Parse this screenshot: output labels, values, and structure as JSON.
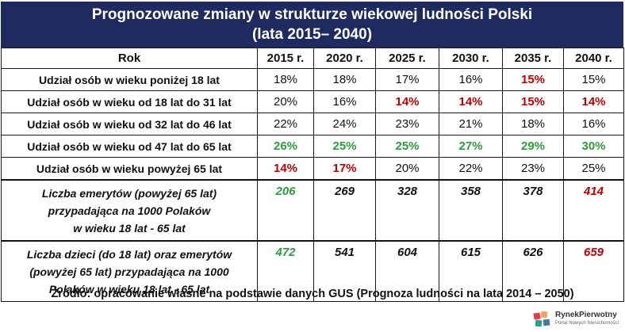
{
  "title_line1": "Prognozowane zmiany w strukturze wiekowej ludności Polski",
  "title_line2": "(lata 2015– 2040)",
  "table": {
    "header": [
      "Rok",
      "2015 r.",
      "2020 r.",
      "2025 r.",
      "2030 r.",
      "2035 r.",
      "2040 r."
    ],
    "rows": [
      {
        "label": "Udział osób w wieku poniżej 18 lat",
        "cells": [
          {
            "v": "18%",
            "c": ""
          },
          {
            "v": "18%",
            "c": ""
          },
          {
            "v": "17%",
            "c": ""
          },
          {
            "v": "16%",
            "c": ""
          },
          {
            "v": "15%",
            "c": "red"
          },
          {
            "v": "15%",
            "c": ""
          }
        ]
      },
      {
        "label": "Udział osób w wieku od 18 lat do 31 lat",
        "cells": [
          {
            "v": "20%",
            "c": ""
          },
          {
            "v": "16%",
            "c": ""
          },
          {
            "v": "14%",
            "c": "red"
          },
          {
            "v": "14%",
            "c": "red"
          },
          {
            "v": "15%",
            "c": "red"
          },
          {
            "v": "14%",
            "c": "red"
          }
        ]
      },
      {
        "label": "Udział osób w wieku od 32 lat do 46 lat",
        "cells": [
          {
            "v": "22%",
            "c": ""
          },
          {
            "v": "24%",
            "c": ""
          },
          {
            "v": "23%",
            "c": ""
          },
          {
            "v": "21%",
            "c": ""
          },
          {
            "v": "18%",
            "c": ""
          },
          {
            "v": "16%",
            "c": ""
          }
        ]
      },
      {
        "label": "Udział osób w wieku od 47 lat do 65 lat",
        "cells": [
          {
            "v": "26%",
            "c": "green"
          },
          {
            "v": "25%",
            "c": "green"
          },
          {
            "v": "25%",
            "c": "green"
          },
          {
            "v": "27%",
            "c": "green"
          },
          {
            "v": "29%",
            "c": "green"
          },
          {
            "v": "30%",
            "c": "green"
          }
        ]
      },
      {
        "label": "Udział osób w wieku powyżej 65 lat",
        "cells": [
          {
            "v": "14%",
            "c": "red"
          },
          {
            "v": "17%",
            "c": "red"
          },
          {
            "v": "20%",
            "c": ""
          },
          {
            "v": "22%",
            "c": ""
          },
          {
            "v": "23%",
            "c": ""
          },
          {
            "v": "25%",
            "c": ""
          }
        ]
      }
    ],
    "big_rows": [
      {
        "label_lines": [
          "Liczba emerytów (powyżej 65 lat)",
          "przypadająca na 1000 Polaków",
          "w wieku 18 lat - 65 lat"
        ],
        "cells": [
          {
            "v": "206",
            "c": "green"
          },
          {
            "v": "269",
            "c": ""
          },
          {
            "v": "328",
            "c": ""
          },
          {
            "v": "358",
            "c": ""
          },
          {
            "v": "378",
            "c": ""
          },
          {
            "v": "414",
            "c": "red"
          }
        ]
      },
      {
        "label_lines": [
          "Liczba dzieci (do 18 lat) oraz emerytów",
          "(powyżej 65 lat) przypadająca na 1000",
          "Polaków w wieku 18 lat - 65 lat"
        ],
        "cells": [
          {
            "v": "472",
            "c": "green"
          },
          {
            "v": "541",
            "c": ""
          },
          {
            "v": "604",
            "c": ""
          },
          {
            "v": "615",
            "c": ""
          },
          {
            "v": "626",
            "c": ""
          },
          {
            "v": "659",
            "c": "red"
          }
        ]
      }
    ]
  },
  "source": "Źródło: opracowanie własne na podstawie danych GUS (Prognoza ludności na lata 2014 – 2050)",
  "logo": {
    "name": "RynekPierwotny",
    "sub": "Portal Nowych Nieruchomości"
  },
  "colors": {
    "header_bg": "#1f2a5e",
    "red": "#c00000",
    "green": "#2e9b3e"
  }
}
